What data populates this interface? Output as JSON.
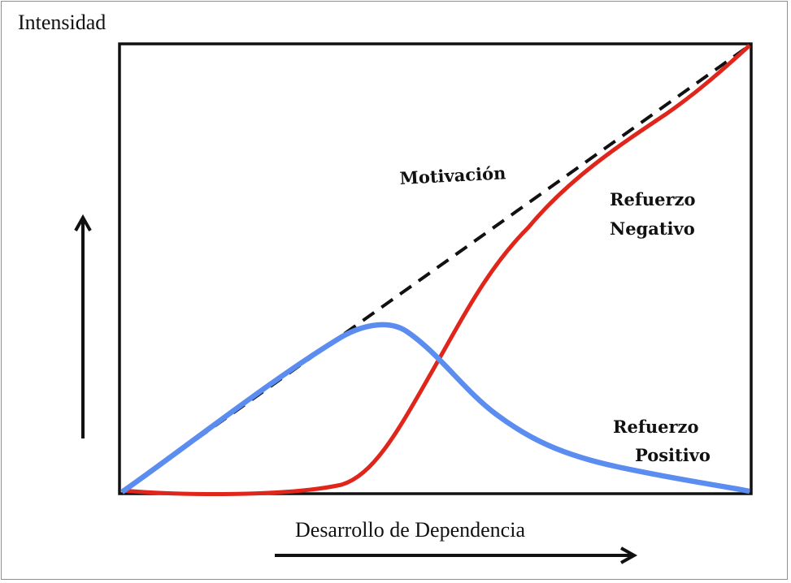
{
  "diagram": {
    "y_axis_label": "Intensidad",
    "x_axis_label": "Desarrollo de Dependencia",
    "curves": [
      {
        "name": "Motivación",
        "color": "#111111",
        "style": "dashed"
      },
      {
        "name": "Refuerzo Negativo",
        "label_lines": [
          "Refuerzo",
          "Negativo"
        ],
        "color": "#e0251b",
        "style": "solid"
      },
      {
        "name": "Refuerzo Positivo",
        "label_lines": [
          "Refuerzo",
          "Positivo"
        ],
        "color": "#5b8cf0",
        "style": "solid"
      }
    ],
    "labels": {
      "motivation": "Motivación",
      "negative_line1": "Refuerzo",
      "negative_line2": "Negativo",
      "positive_line1": "Refuerzo",
      "positive_line2": "Positivo"
    }
  }
}
